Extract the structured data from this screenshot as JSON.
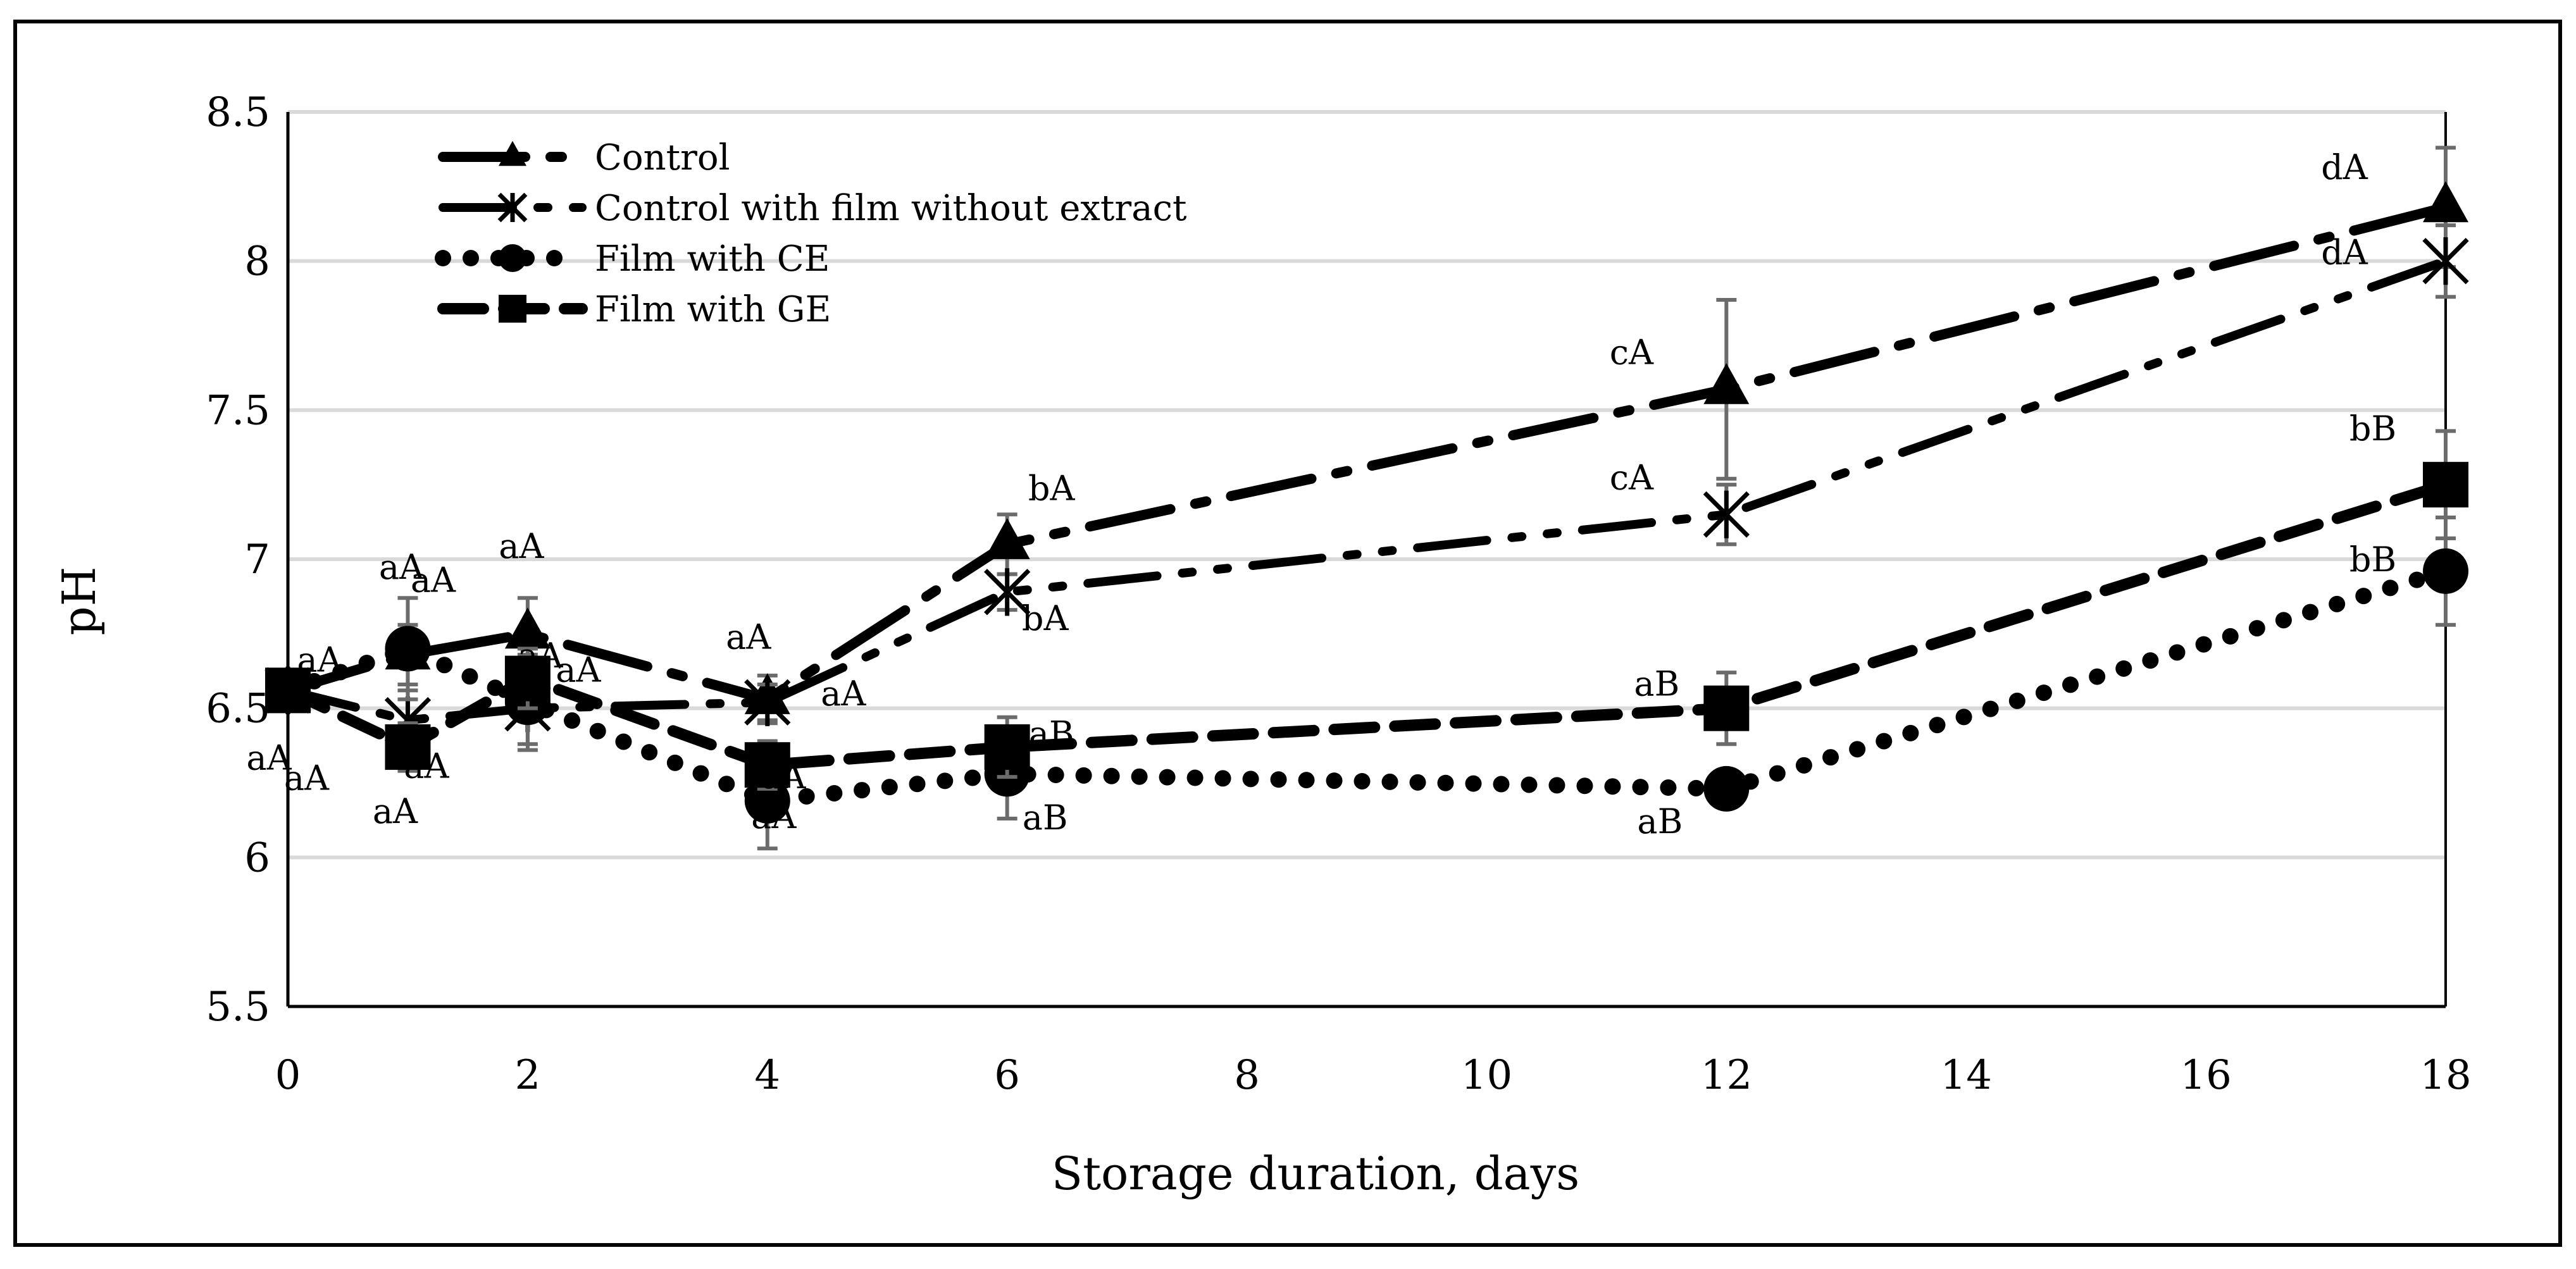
{
  "chart_data": {
    "type": "line",
    "title": "",
    "xlabel": "Storage duration, days",
    "ylabel": "pH",
    "xlim": [
      0,
      18
    ],
    "ylim": [
      5.5,
      8.5
    ],
    "x_ticks": [
      0,
      2,
      4,
      6,
      8,
      10,
      12,
      14,
      16,
      18
    ],
    "x_tick_labels": [
      "0",
      "2",
      "4",
      "6",
      "8",
      "10",
      "12",
      "14",
      "16",
      "18"
    ],
    "y_ticks": [
      5.5,
      6,
      6.5,
      7,
      7.5,
      8,
      8.5
    ],
    "y_tick_labels": [
      "5.5",
      "6",
      "6.5",
      "7",
      "7.5",
      "8",
      "8.5"
    ],
    "grid": "horizontal",
    "legend": "top-left",
    "series": [
      {
        "name": "Control",
        "marker": "triangle",
        "line_style": "long-dash-dot",
        "x": [
          0,
          1,
          2,
          4,
          6,
          12,
          18
        ],
        "y": [
          6.56,
          6.68,
          6.75,
          6.53,
          7.05,
          7.57,
          8.18
        ],
        "err": [
          0,
          0.1,
          0.12,
          0.08,
          0.1,
          0.3,
          0.2
        ],
        "labels": [
          "",
          "aA",
          "aA",
          "aA",
          "bA",
          "cA",
          "dA"
        ]
      },
      {
        "name": "Control with film without extract",
        "marker": "star",
        "line_style": "long-dash-dot-dot",
        "x": [
          0,
          1,
          2,
          4,
          6,
          12,
          18
        ],
        "y": [
          6.56,
          6.46,
          6.5,
          6.52,
          6.89,
          7.15,
          8.0
        ],
        "err": [
          0,
          0.1,
          0.12,
          0.06,
          0.06,
          0.1,
          0.12
        ],
        "labels": [
          "",
          "aA",
          "aA",
          "aA",
          "bA",
          "cA",
          "dA"
        ]
      },
      {
        "name": "Film with CE",
        "marker": "circle",
        "line_style": "dotted",
        "x": [
          0,
          1,
          2,
          4,
          6,
          12,
          18
        ],
        "y": [
          6.56,
          6.7,
          6.52,
          6.19,
          6.28,
          6.23,
          6.96
        ],
        "err": [
          0,
          0.17,
          0.16,
          0.16,
          0.15,
          0.04,
          0.18
        ],
        "labels": [
          "aA",
          "aA",
          "aA",
          "aA",
          "aB",
          "aB",
          "bB"
        ]
      },
      {
        "name": "Film with GE",
        "marker": "square",
        "line_style": "dashed",
        "x": [
          0,
          1,
          2,
          4,
          6,
          12,
          18
        ],
        "y": [
          6.56,
          6.37,
          6.6,
          6.31,
          6.37,
          6.5,
          7.25
        ],
        "err": [
          0,
          0.08,
          0.1,
          0.08,
          0.1,
          0.12,
          0.18
        ],
        "labels": [
          "aA",
          "aA",
          "aA",
          "aA",
          "aB",
          "aB",
          "bB"
        ]
      }
    ]
  }
}
